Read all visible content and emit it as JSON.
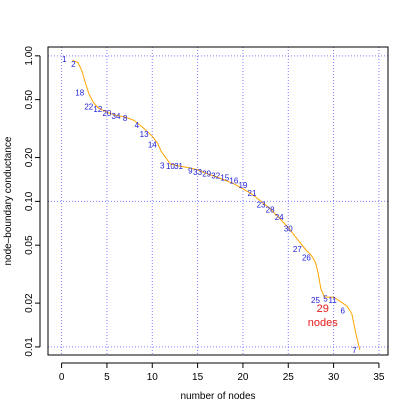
{
  "chart_data": {
    "type": "line",
    "xlabel": "number of nodes",
    "ylabel": "node–boundary conductance",
    "xlim": [
      -1.5,
      36
    ],
    "ylim": [
      0.0088,
      1.15
    ],
    "yscale": "log",
    "grid": true,
    "x_ticks": [
      {
        "value": 0,
        "label": "0"
      },
      {
        "value": 5,
        "label": "5"
      },
      {
        "value": 10,
        "label": "10"
      },
      {
        "value": 15,
        "label": "15"
      },
      {
        "value": 20,
        "label": "20"
      },
      {
        "value": 25,
        "label": "25"
      },
      {
        "value": 30,
        "label": "30"
      },
      {
        "value": 35,
        "label": "35"
      }
    ],
    "y_ticks": [
      {
        "value": 0.01,
        "label": "0.01"
      },
      {
        "value": 0.02,
        "label": "0.02"
      },
      {
        "value": 0.05,
        "label": "0.05"
      },
      {
        "value": 0.1,
        "label": "0.10"
      },
      {
        "value": 0.2,
        "label": "0.20"
      },
      {
        "value": 0.5,
        "label": "0.50"
      },
      {
        "value": 1.0,
        "label": "1.00"
      }
    ],
    "x_grid": [
      0,
      5,
      10,
      15,
      20,
      25,
      30,
      35
    ],
    "y_grid": [
      0.01,
      0.1,
      1.0
    ],
    "curve": {
      "name": "",
      "color": "#ffa500",
      "x": [
        1.2,
        1.8,
        2.2,
        2.6,
        3.0,
        3.5,
        4.0,
        5.0,
        6.0,
        7.0,
        8.0,
        9.0,
        10.0,
        10.6,
        11.0,
        12.0,
        13.0,
        14.0,
        15.0,
        16.0,
        17.0,
        18.0,
        19.0,
        20.0,
        21.0,
        22.0,
        23.0,
        24.0,
        25.0,
        26.0,
        27.0,
        27.5,
        28.0,
        28.3,
        28.6,
        29.0,
        30.0,
        31.0,
        31.5,
        32.0,
        32.5,
        32.9
      ],
      "y": [
        0.93,
        0.9,
        0.8,
        0.66,
        0.55,
        0.48,
        0.44,
        0.41,
        0.39,
        0.38,
        0.36,
        0.32,
        0.28,
        0.25,
        0.22,
        0.18,
        0.175,
        0.17,
        0.165,
        0.155,
        0.148,
        0.14,
        0.132,
        0.122,
        0.112,
        0.1,
        0.089,
        0.077,
        0.066,
        0.055,
        0.046,
        0.043,
        0.038,
        0.032,
        0.025,
        0.022,
        0.022,
        0.02,
        0.019,
        0.017,
        0.012,
        0.0095
      ]
    },
    "points": [
      {
        "label": "1",
        "x": 0.3,
        "y": 0.95
      },
      {
        "label": "2",
        "x": 1.3,
        "y": 0.88
      },
      {
        "label": "18",
        "x": 2.0,
        "y": 0.56
      },
      {
        "label": "22",
        "x": 3.0,
        "y": 0.45
      },
      {
        "label": "12",
        "x": 4.0,
        "y": 0.43
      },
      {
        "label": "20",
        "x": 5.0,
        "y": 0.405
      },
      {
        "label": "34",
        "x": 6.0,
        "y": 0.385
      },
      {
        "label": "8",
        "x": 7.0,
        "y": 0.375
      },
      {
        "label": "4",
        "x": 8.3,
        "y": 0.335
      },
      {
        "label": "13",
        "x": 9.1,
        "y": 0.29
      },
      {
        "label": "14",
        "x": 10.0,
        "y": 0.245
      },
      {
        "label": "3",
        "x": 11.1,
        "y": 0.177
      },
      {
        "label": "10",
        "x": 12.0,
        "y": 0.175
      },
      {
        "label": "31",
        "x": 12.9,
        "y": 0.175
      },
      {
        "label": "9",
        "x": 14.2,
        "y": 0.163
      },
      {
        "label": "33",
        "x": 15.0,
        "y": 0.159
      },
      {
        "label": "29",
        "x": 16.0,
        "y": 0.155
      },
      {
        "label": "32",
        "x": 17.0,
        "y": 0.15
      },
      {
        "label": "15",
        "x": 18.0,
        "y": 0.146
      },
      {
        "label": "16",
        "x": 19.0,
        "y": 0.139
      },
      {
        "label": "19",
        "x": 20.0,
        "y": 0.13
      },
      {
        "label": "21",
        "x": 21.0,
        "y": 0.114
      },
      {
        "label": "23",
        "x": 22.0,
        "y": 0.095
      },
      {
        "label": "28",
        "x": 23.0,
        "y": 0.088
      },
      {
        "label": "24",
        "x": 24.0,
        "y": 0.078
      },
      {
        "label": "30",
        "x": 25.0,
        "y": 0.065
      },
      {
        "label": "27",
        "x": 26.0,
        "y": 0.047
      },
      {
        "label": "26",
        "x": 27.0,
        "y": 0.041
      },
      {
        "label": "25",
        "x": 28.0,
        "y": 0.021
      },
      {
        "label": "5",
        "x": 29.1,
        "y": 0.0215
      },
      {
        "label": "11",
        "x": 29.9,
        "y": 0.021
      },
      {
        "label": "6",
        "x": 31.0,
        "y": 0.0178
      },
      {
        "label": "7",
        "x": 32.3,
        "y": 0.0095
      }
    ],
    "annotation": {
      "line1": "29",
      "line2": "nodes",
      "x": 28.8,
      "y": 0.0185,
      "color": "#e8191a"
    }
  }
}
